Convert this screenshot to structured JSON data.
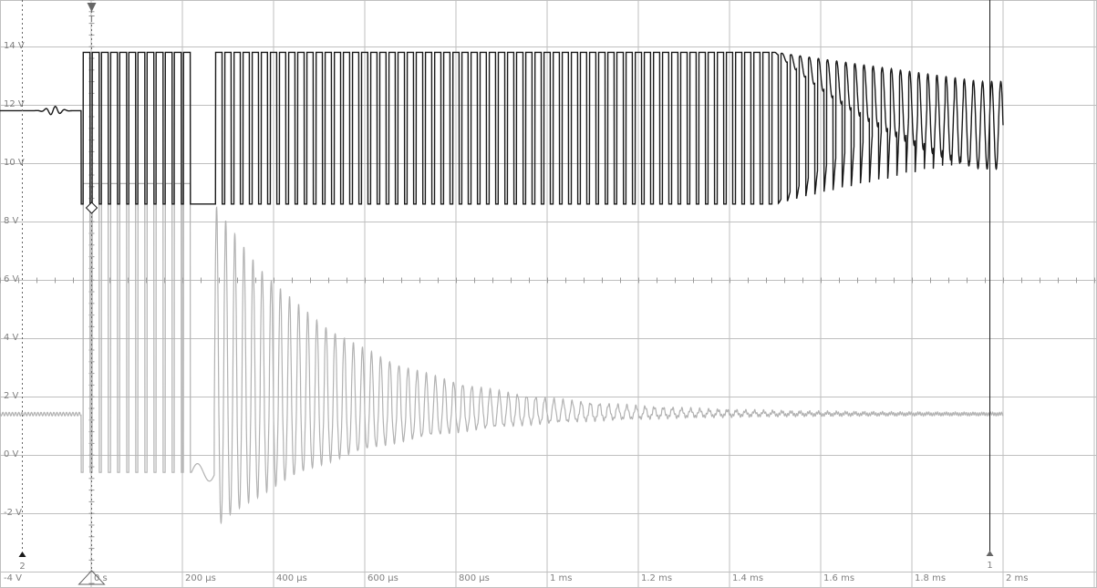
{
  "colors": {
    "background": "#ffffff",
    "grid": "#bfbfbf",
    "axis_ticks": "#9a9a9a",
    "label": "#808080",
    "ch1": "#1a1a1a",
    "ch2": "#b2b2b2",
    "marker": "#666666"
  },
  "chart_data": {
    "type": "line",
    "title": "",
    "xlabel": "",
    "ylabel": "",
    "grid": true,
    "legend": "none",
    "x_unit": "µs",
    "y_unit": "V",
    "xlim": [
      -0.2,
      2.0
    ],
    "ylim": [
      -4,
      15
    ],
    "y_tick_labels": [
      "14 V",
      "12 V",
      "10 V",
      "8 V",
      "6 V",
      "4 V",
      "2 V",
      "0 V",
      "-2 V",
      "-4 V"
    ],
    "x_tick_labels": [
      "0 s",
      "200 µs",
      "400 µs",
      "600 µs",
      "800 µs",
      "1 ms",
      "1.2 ms",
      "1.4 ms",
      "1.6 ms",
      "1.8 ms",
      "2 ms"
    ],
    "markers": {
      "trigger_label": "T",
      "channel2_ref_label": "2",
      "cursor_label": "1",
      "cursor_x_ms": 1.97
    },
    "series": [
      {
        "channel": "1",
        "pre_trigger_level_v": 11.8,
        "switching_high_v": 13.8,
        "switching_low_v": 8.6,
        "burst_end_ms": 0.22,
        "restart_ms": 0.27,
        "oscillation_center_at_end_v": 11.3,
        "oscillation_amplitude_at_end_v": 1.5
      },
      {
        "channel": "2",
        "baseline_v": 1.4,
        "switching_high_v": 9.3,
        "switching_low_v": -0.6,
        "burst_end_ms": 0.22,
        "ringing_peak_v": 8.6,
        "ringing_center_v": 1.4,
        "ringing_decayed_by_ms": 1.9
      }
    ]
  }
}
